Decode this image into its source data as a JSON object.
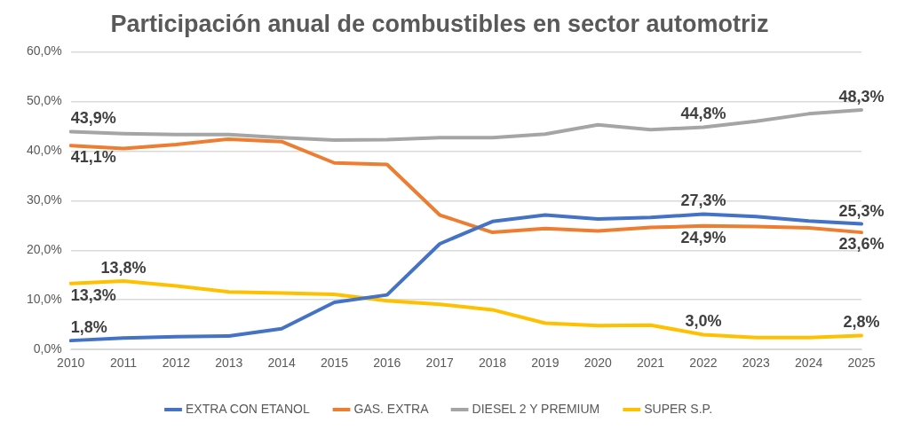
{
  "chart_data": {
    "type": "line",
    "title": "Participación anual de combustibles en sector automotriz",
    "categories": [
      "2010",
      "2011",
      "2012",
      "2013",
      "2014",
      "2015",
      "2016",
      "2017",
      "2018",
      "2019",
      "2020",
      "2021",
      "2022",
      "2023",
      "2024",
      "2025"
    ],
    "series": [
      {
        "name": "EXTRA CON ETANOL",
        "color": "#4472c4",
        "values": [
          1.8,
          2.3,
          2.6,
          2.7,
          4.2,
          9.5,
          11.0,
          21.3,
          25.8,
          27.1,
          26.3,
          26.6,
          27.3,
          26.8,
          25.9,
          25.3
        ],
        "value_labels": [
          "1,8%",
          null,
          null,
          null,
          null,
          null,
          null,
          null,
          null,
          null,
          null,
          null,
          "27,3%",
          null,
          null,
          "25,3%"
        ]
      },
      {
        "name": "GAS. EXTRA",
        "color": "#ed7d31",
        "values": [
          41.1,
          40.5,
          41.3,
          42.4,
          41.9,
          37.6,
          37.3,
          27.1,
          23.6,
          24.4,
          23.9,
          24.6,
          24.9,
          24.8,
          24.5,
          23.6
        ],
        "value_labels": [
          "41,1%",
          null,
          null,
          null,
          null,
          null,
          null,
          null,
          null,
          null,
          null,
          null,
          "24,9%",
          null,
          null,
          "23,6%"
        ]
      },
      {
        "name": "DIESEL 2 Y PREMIUM",
        "color": "#a5a5a5",
        "values": [
          43.9,
          43.5,
          43.3,
          43.3,
          42.7,
          42.2,
          42.3,
          42.7,
          42.7,
          43.4,
          45.3,
          44.3,
          44.8,
          46.0,
          47.5,
          48.3
        ],
        "value_labels": [
          "43,9%",
          null,
          null,
          null,
          null,
          null,
          null,
          null,
          null,
          null,
          null,
          null,
          "44,8%",
          null,
          null,
          "48,3%"
        ]
      },
      {
        "name": "SUPER S.P.",
        "color": "#ffc000",
        "values": [
          13.3,
          13.8,
          12.8,
          11.6,
          11.4,
          11.1,
          9.8,
          9.1,
          8.0,
          5.3,
          4.8,
          4.9,
          3.0,
          2.4,
          2.4,
          2.8
        ],
        "value_labels": [
          "13,3%",
          "13,8%",
          null,
          null,
          null,
          null,
          null,
          null,
          null,
          null,
          null,
          null,
          "3,0%",
          null,
          null,
          "2,8%"
        ]
      }
    ],
    "ylim": [
      0,
      60
    ],
    "yticks": [
      {
        "value": 0,
        "label": "0,0%"
      },
      {
        "value": 10,
        "label": "10,0%"
      },
      {
        "value": 20,
        "label": "20,0%"
      },
      {
        "value": 30,
        "label": "30,0%"
      },
      {
        "value": 40,
        "label": "40,0%"
      },
      {
        "value": 50,
        "label": "50,0%"
      },
      {
        "value": 60,
        "label": "60,0%"
      }
    ],
    "grid": "y",
    "legend": "bottom",
    "marker": "none",
    "line_style": "solid"
  }
}
